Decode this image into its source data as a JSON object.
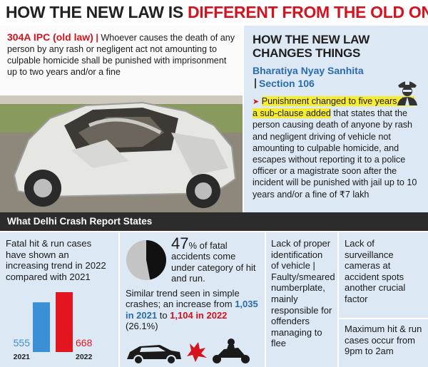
{
  "headline": {
    "part1": "HOW THE NEW LAW IS ",
    "part2": "DIFFERENT FROM THE OLD ONE"
  },
  "old_law": {
    "tag": "304A IPC (old law)",
    "separator": "|",
    "text": "Whoever causes the death of any person by any rash or negligent act not amounting to culpable homicide shall be punished with imprisonment up to two years and/or a fine"
  },
  "new_law": {
    "title_line1": "HOW THE NEW LAW",
    "title_line2": "CHANGES THINGS",
    "sub_part1": "Bharatiya Nyay Sanhita",
    "sub_part2": "Section 106",
    "arrow": "➤",
    "highlight": "Punishment changed to five years, but a sub-clause added",
    "text": " that states that the person causing death of anyone by rash and negligent driving of vehicle not amounting to culpable homicide, and escapes without reporting it to a police officer or a magistrate soon after the incident will be punished with jail up to 10 years and/or a fine of ₹7 lakh"
  },
  "report": {
    "heading": "What Delhi Crash Report States",
    "panel1_text": "Fatal hit & run cases have shown an increasing trend in 2022 compared with 2021",
    "pct": "47",
    "pct_rest": "% of fatal accidents come under category of hit and run.",
    "trend_a": " Similar trend seen in simple crashes; an increase from ",
    "num_2021": "1,035 in 2021",
    "to_word": " to ",
    "num_2022": "1,104 in 2022",
    "trend_b": " (26.1%)",
    "panel3_text": "Lack of proper identification of vehicle | Faulty/smeared numberplate, mainly responsible for offenders managing to flee",
    "panel4_text": "Lack of surveillance cameras at accident spots another crucial factor",
    "panel5_text": "Maximum hit & run cases occur from 9pm to 2am"
  },
  "colors": {
    "accent_red": "#d6121f",
    "accent_blue": "#2a6bb0",
    "panel_bg": "#dce8f3",
    "highlight": "#f7ed2e"
  },
  "chart_data": {
    "type": "bar",
    "categories": [
      "2021",
      "2022"
    ],
    "values": [
      555,
      668
    ],
    "value_labels": [
      "555",
      "668"
    ],
    "colors": [
      "#3a8fd6",
      "#e3161f"
    ],
    "ylim": [
      0,
      700
    ]
  },
  "pie_data": {
    "type": "pie",
    "values": [
      47,
      53
    ],
    "colors": [
      "#111111",
      "#c4c4c4"
    ]
  },
  "icons": [
    "police-officer-icon",
    "car-crash-icon"
  ]
}
